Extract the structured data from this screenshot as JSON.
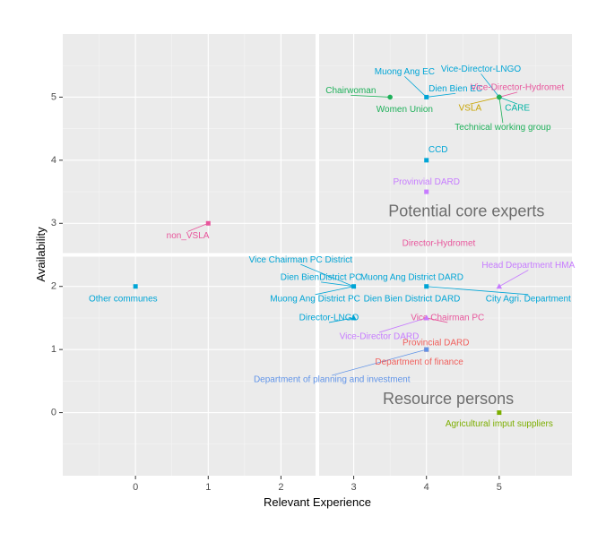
{
  "chart_data": {
    "type": "scatter",
    "xlabel": "Relevant Experience",
    "ylabel": "Availability",
    "xlim": [
      -1,
      6
    ],
    "ylim": [
      -1,
      6
    ],
    "x_ticks": [
      0,
      1,
      2,
      3,
      4,
      5
    ],
    "y_ticks": [
      0,
      1,
      2,
      3,
      4,
      5
    ],
    "grid": true,
    "reference_lines": {
      "x": 2.5,
      "y": 2.5
    },
    "quadrant_labels": [
      {
        "text": "Potential core experts",
        "x": 4.55,
        "y": 3.18
      },
      {
        "text": "Resource persons",
        "x": 4.3,
        "y": 0.2
      }
    ],
    "points": [
      {
        "name": "Chairwoman",
        "x": 3.5,
        "y": 5,
        "color": "#1fb05a",
        "shape": "circle",
        "lx": 2.96,
        "ly": 5.1
      },
      {
        "name": "Women Union",
        "x": 3.5,
        "y": 5,
        "color": "#1fb05a",
        "shape": "circle",
        "lx": 3.7,
        "ly": 4.8
      },
      {
        "name": "Muong Ang EC",
        "x": 4,
        "y": 5,
        "color": "#00a5d6",
        "shape": "square",
        "lx": 3.7,
        "ly": 5.4
      },
      {
        "name": "Dien Bien EC",
        "x": 4,
        "y": 5,
        "color": "#00a5d6",
        "shape": "square",
        "lx": 4.4,
        "ly": 5.13
      },
      {
        "name": "Vice-Director-LNGO",
        "x": 5,
        "y": 5,
        "color": "#00a5d6",
        "shape": "circle",
        "lx": 4.75,
        "ly": 5.44
      },
      {
        "name": "Vice-Director-Hydromet",
        "x": 5,
        "y": 5,
        "color": "#e8569c",
        "shape": "circle",
        "lx": 5.25,
        "ly": 5.15
      },
      {
        "name": "VSLA",
        "x": 5,
        "y": 5,
        "color": "#c8a400",
        "shape": "circle",
        "lx": 4.6,
        "ly": 4.82
      },
      {
        "name": "CARE",
        "x": 5,
        "y": 5,
        "color": "#00b3a4",
        "shape": "circle",
        "lx": 5.25,
        "ly": 4.82
      },
      {
        "name": "Technical working group",
        "x": 5,
        "y": 5,
        "color": "#1fb05a",
        "shape": "circle",
        "lx": 5.05,
        "ly": 4.52
      },
      {
        "name": "CCD",
        "x": 4,
        "y": 4,
        "color": "#00a5d6",
        "shape": "square",
        "lx": 4.16,
        "ly": 4.16
      },
      {
        "name": "Provinvial DARD",
        "x": 4,
        "y": 3.5,
        "color": "#c77cff",
        "shape": "square",
        "lx": 4.0,
        "ly": 3.65
      },
      {
        "name": "non_VSLA",
        "x": 1,
        "y": 3,
        "color": "#e8569c",
        "shape": "square",
        "lx": 0.72,
        "ly": 2.8
      },
      {
        "name": "Director-Hydromet",
        "x": 4.17,
        "y": 2.68,
        "color": "#e8569c",
        "shape": "none",
        "lx": 4.17,
        "ly": 2.68
      },
      {
        "name": "Other communes",
        "x": 0,
        "y": 2,
        "color": "#00a5d6",
        "shape": "square",
        "lx": -0.17,
        "ly": 1.8
      },
      {
        "name": "Vice Chairman PC District",
        "x": 3,
        "y": 2,
        "color": "#00a5d6",
        "shape": "square",
        "lx": 2.27,
        "ly": 2.42
      },
      {
        "name": "Dien BienDistrict PC",
        "x": 3,
        "y": 2,
        "color": "#00a5d6",
        "shape": "square",
        "lx": 2.55,
        "ly": 2.14
      },
      {
        "name": "Muong Ang District PC",
        "x": 3,
        "y": 2,
        "color": "#00a5d6",
        "shape": "square",
        "lx": 2.47,
        "ly": 1.8
      },
      {
        "name": "Muong Ang District DARD",
        "x": 4,
        "y": 2,
        "color": "#00a5d6",
        "shape": "square",
        "lx": 3.8,
        "ly": 2.14
      },
      {
        "name": "Dien Bien District DARD",
        "x": 4,
        "y": 2,
        "color": "#00a5d6",
        "shape": "square",
        "lx": 3.8,
        "ly": 1.8
      },
      {
        "name": "City Agri. Department",
        "x": 4,
        "y": 2,
        "color": "#00a5d6",
        "shape": "square",
        "lx": 5.4,
        "ly": 1.8
      },
      {
        "name": "Head Department HMA",
        "x": 5,
        "y": 2,
        "color": "#c77cff",
        "shape": "triangle",
        "lx": 5.4,
        "ly": 2.33
      },
      {
        "name": "Director-LNGO",
        "x": 3,
        "y": 1.5,
        "color": "#00a5d6",
        "shape": "triangle",
        "lx": 2.66,
        "ly": 1.5
      },
      {
        "name": "Vice Chairman PC",
        "x": 4,
        "y": 1.5,
        "color": "#e8569c",
        "shape": "triangle",
        "lx": 4.29,
        "ly": 1.5
      },
      {
        "name": "Vice-Director DARD",
        "x": 4,
        "y": 1.5,
        "color": "#c77cff",
        "shape": "triangle",
        "lx": 3.35,
        "ly": 1.2
      },
      {
        "name": "Provincial DARD",
        "x": 4,
        "y": 1,
        "color": "#f0605d",
        "shape": "square",
        "lx": 4.13,
        "ly": 1.1
      },
      {
        "name": "Department of finance",
        "x": 4,
        "y": 1,
        "color": "#f0605d",
        "shape": "square",
        "lx": 3.9,
        "ly": 0.8
      },
      {
        "name": "Department of planning and investment",
        "x": 4,
        "y": 1,
        "color": "#6194e8",
        "shape": "square",
        "lx": 2.7,
        "ly": 0.52
      },
      {
        "name": "Agricultural imput suppliers",
        "x": 5,
        "y": 0,
        "color": "#7cae00",
        "shape": "square",
        "lx": 5.0,
        "ly": -0.18
      }
    ]
  }
}
